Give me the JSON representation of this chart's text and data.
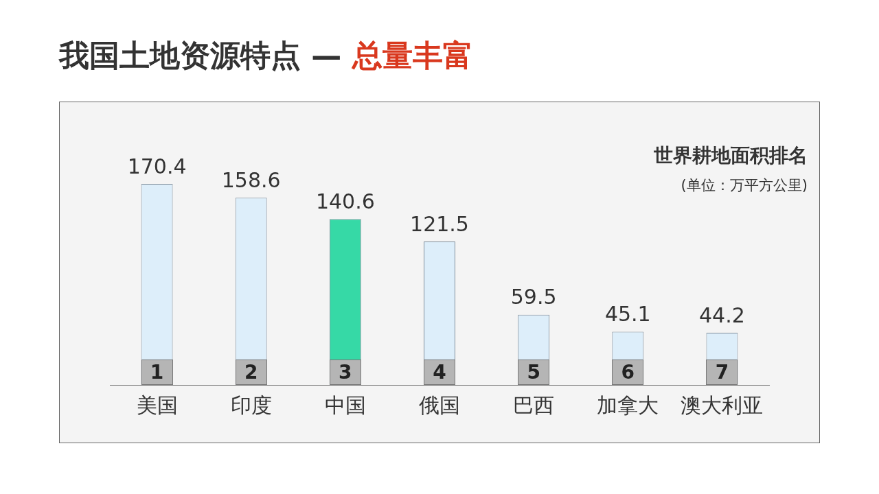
{
  "chart_data": {
    "type": "bar",
    "title": "我国土地资源特点 — 总量丰富",
    "categories": [
      "美国",
      "印度",
      "中国",
      "俄国",
      "巴西",
      "加拿大",
      "澳大利亚"
    ],
    "values": [
      170.4,
      158.6,
      140.6,
      121.5,
      59.5,
      45.1,
      44.2
    ],
    "colors": [
      "#ddeefa",
      "#ddeefa",
      "#36d9a6",
      "#ddeefa",
      "#ddeefa",
      "#ddeefa",
      "#ddeefa"
    ],
    "data_labels": true,
    "grid": false,
    "legend": false,
    "annotations": [
      "世界耕地面积排名",
      "(单位：万平方公里)",
      "1",
      "2",
      "3",
      "4",
      "5",
      "6",
      "7"
    ]
  }
}
